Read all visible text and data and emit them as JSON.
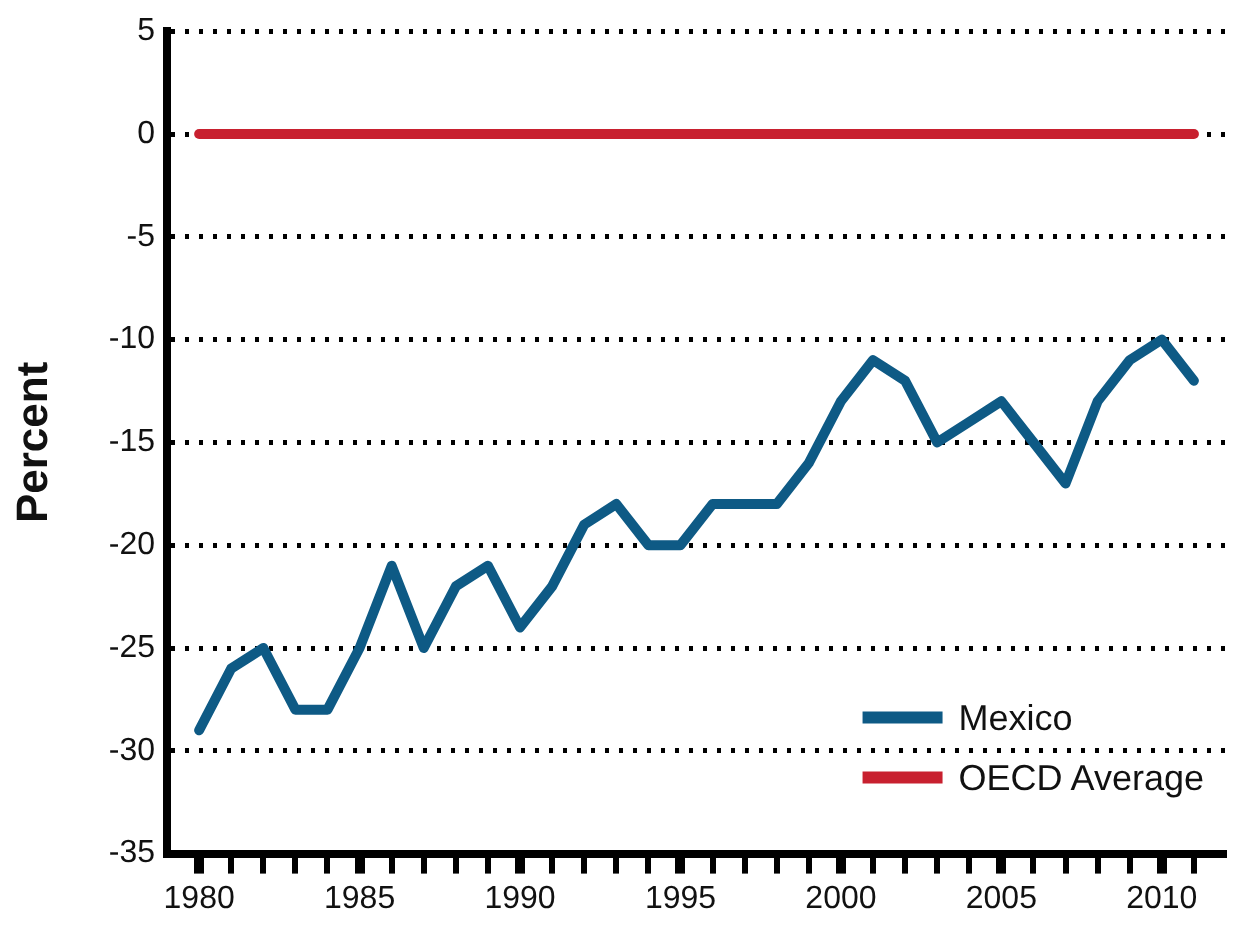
{
  "chart_data": {
    "type": "line",
    "ylabel": "Percent",
    "x": [
      1980,
      1981,
      1982,
      1983,
      1984,
      1985,
      1986,
      1987,
      1988,
      1989,
      1990,
      1991,
      1992,
      1993,
      1994,
      1995,
      1996,
      1997,
      1998,
      1999,
      2000,
      2001,
      2002,
      2003,
      2004,
      2005,
      2006,
      2007,
      2008,
      2009,
      2010,
      2011
    ],
    "series": [
      {
        "name": "Mexico",
        "color": "#0e5a85",
        "values": [
          -29,
          -26,
          -25,
          -28,
          -28,
          -25,
          -21,
          -25,
          -22,
          -21,
          -24,
          -22,
          -19,
          -18,
          -20,
          -20,
          -18,
          -18,
          -18,
          -16,
          -13,
          -11,
          -12,
          -15,
          -14,
          -13,
          -15,
          -17,
          -13,
          -11,
          -10,
          -12
        ]
      },
      {
        "name": "OECD Average",
        "color": "#c8202f",
        "values": [
          0,
          0,
          0,
          0,
          0,
          0,
          0,
          0,
          0,
          0,
          0,
          0,
          0,
          0,
          0,
          0,
          0,
          0,
          0,
          0,
          0,
          0,
          0,
          0,
          0,
          0,
          0,
          0,
          0,
          0,
          0,
          0
        ]
      }
    ],
    "xlim": [
      1979,
      2012
    ],
    "xticks": [
      1980,
      {
        "value": 1981,
        "label": null
      },
      {
        "value": 1982,
        "label": null
      },
      {
        "value": 1983,
        "label": null
      },
      {
        "value": 1984,
        "label": null
      },
      1985,
      {
        "value": 1986,
        "label": null
      },
      {
        "value": 1987,
        "label": null
      },
      {
        "value": 1988,
        "label": null
      },
      {
        "value": 1989,
        "label": null
      },
      1990,
      {
        "value": 1991,
        "label": null
      },
      {
        "value": 1992,
        "label": null
      },
      {
        "value": 1993,
        "label": null
      },
      {
        "value": 1994,
        "label": null
      },
      1995,
      {
        "value": 1996,
        "label": null
      },
      {
        "value": 1997,
        "label": null
      },
      {
        "value": 1998,
        "label": null
      },
      {
        "value": 1999,
        "label": null
      },
      2000,
      {
        "value": 2001,
        "label": null
      },
      {
        "value": 2002,
        "label": null
      },
      {
        "value": 2003,
        "label": null
      },
      {
        "value": 2004,
        "label": null
      },
      2005,
      {
        "value": 2006,
        "label": null
      },
      {
        "value": 2007,
        "label": null
      },
      {
        "value": 2008,
        "label": null
      },
      {
        "value": 2009,
        "label": null
      },
      2010,
      {
        "value": 2011,
        "label": null
      }
    ],
    "ylim": [
      -35,
      5
    ],
    "yticks": [
      -35,
      -30,
      -25,
      -20,
      -15,
      -10,
      -5,
      0,
      5
    ],
    "grid": "y",
    "legend": "bottom right",
    "marker": "none",
    "line_style": "solid"
  }
}
